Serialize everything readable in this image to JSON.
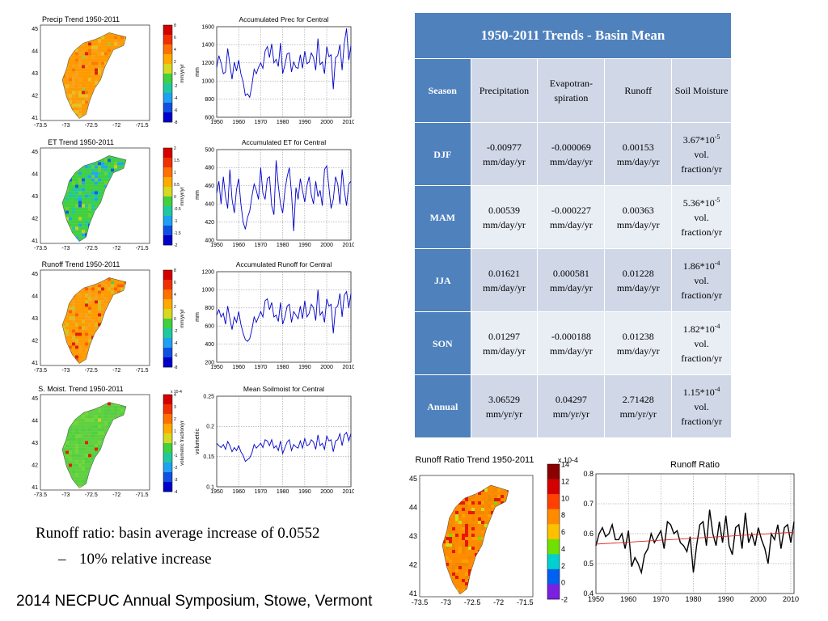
{
  "map_panels": [
    {
      "title": "Precip Trend 1950-2011",
      "xticks": [
        "-73.5",
        "-73",
        "-72.5",
        "-72",
        "-71.5"
      ],
      "yticks": [
        "45",
        "44",
        "43",
        "42",
        "41"
      ],
      "colorbar": {
        "ticks": [
          "8",
          "6",
          "4",
          "2",
          "0",
          "-2",
          "-4",
          "-6",
          "-8"
        ],
        "unit": "mm/yr/yr",
        "colors": [
          "#d40000",
          "#f03000",
          "#ff7000",
          "#ffaa00",
          "#d8d820",
          "#40d040",
          "#20c8a0",
          "#20a0f0",
          "#1050e0",
          "#0000c8"
        ]
      },
      "field_colors": [
        "#ff9a00",
        "#f7a21c",
        "#e8c020",
        "#ff7800",
        "#e02000",
        "#a8c830"
      ]
    },
    {
      "title": "ET Trend 1950-2011",
      "xticks": [
        "-73.5",
        "-73",
        "-72.5",
        "-72",
        "-71.5"
      ],
      "yticks": [
        "45",
        "44",
        "43",
        "42",
        "41"
      ],
      "colorbar": {
        "ticks": [
          "2",
          "1.5",
          "1",
          "0.5",
          "0",
          "-0.5",
          "-1",
          "-1.5",
          "-2"
        ],
        "unit": "mm/yr/yr",
        "colors": [
          "#d40000",
          "#f03000",
          "#ff7000",
          "#ffaa00",
          "#d8d820",
          "#40d040",
          "#20c8a0",
          "#20a0f0",
          "#1050e0",
          "#0000c8"
        ]
      },
      "field_colors": [
        "#40d040",
        "#20c8a0",
        "#20a8f0",
        "#70d030",
        "#1060e0",
        "#c8d020"
      ]
    },
    {
      "title": "Runoff Trend 1950-2011",
      "xticks": [
        "-73.5",
        "-73",
        "-72.5",
        "-72",
        "-71.5"
      ],
      "yticks": [
        "45",
        "44",
        "43",
        "42",
        "41"
      ],
      "colorbar": {
        "ticks": [
          "8",
          "6",
          "4",
          "2",
          "0",
          "-2",
          "-4",
          "-6",
          "-8"
        ],
        "unit": "mm/yr/yr",
        "colors": [
          "#d40000",
          "#f03000",
          "#ff7000",
          "#ffaa00",
          "#d8d820",
          "#40d040",
          "#20c8a0",
          "#20a0f0",
          "#1050e0",
          "#0000c8"
        ]
      },
      "field_colors": [
        "#ff9a00",
        "#f7a21c",
        "#d8c020",
        "#ff6000",
        "#e02000",
        "#60c840"
      ]
    },
    {
      "title": "S. Moist. Trend 1950-2011",
      "xticks": [
        "-73.5",
        "-73",
        "-72.5",
        "-72",
        "-71.5"
      ],
      "yticks": [
        "45",
        "44",
        "43",
        "42",
        "41"
      ],
      "colorbar": {
        "ticks": [
          "4",
          "3",
          "2",
          "1",
          "0",
          "-1",
          "-2",
          "-3",
          "-4"
        ],
        "unit": "volumetric fraction/yr",
        "exponent": "x 10-4",
        "colors": [
          "#d40000",
          "#f03000",
          "#ff7000",
          "#ffaa00",
          "#d8d820",
          "#40d040",
          "#20c8a0",
          "#20a0f0",
          "#1050e0",
          "#0000c8"
        ]
      },
      "field_colors": [
        "#60d040",
        "#50d040",
        "#70d838",
        "#60c848",
        "#e02000",
        "#d8d020"
      ]
    }
  ],
  "ratio_map": {
    "title": "Runoff Ratio Trend 1950-2011",
    "xticks": [
      "-73.5",
      "-73",
      "-72.5",
      "-72",
      "-71.5"
    ],
    "yticks": [
      "45",
      "44",
      "43",
      "42",
      "41"
    ],
    "colorbar": {
      "ticks": [
        "14",
        "12",
        "10",
        "8",
        "6",
        "4",
        "2",
        "0",
        "-2"
      ],
      "exponent": "x 10-4",
      "colors": [
        "#8b0000",
        "#d40000",
        "#ff4000",
        "#ff8c00",
        "#ffc000",
        "#70e000",
        "#00d0d0",
        "#0060f0",
        "#7a20e0"
      ]
    },
    "field_colors": [
      "#ff8c00",
      "#f08800",
      "#e81800",
      "#ffa000",
      "#c8e020",
      "#70e000"
    ]
  },
  "chart_data": [
    {
      "type": "line",
      "title": "Accumulated Prec for Central",
      "xlabel": "",
      "ylabel": "mm",
      "xlim": [
        1950,
        2011
      ],
      "ylim": [
        600,
        1600
      ],
      "yticks": [
        600,
        800,
        1000,
        1200,
        1400,
        1600
      ],
      "xticks": [
        1950,
        1960,
        1970,
        1980,
        1990,
        2000,
        2010
      ],
      "grid": true,
      "color": "#0000cc",
      "x": [
        1950,
        1951,
        1952,
        1953,
        1954,
        1955,
        1956,
        1957,
        1958,
        1959,
        1960,
        1961,
        1962,
        1963,
        1964,
        1965,
        1966,
        1967,
        1968,
        1969,
        1970,
        1971,
        1972,
        1973,
        1974,
        1975,
        1976,
        1977,
        1978,
        1979,
        1980,
        1981,
        1982,
        1983,
        1984,
        1985,
        1986,
        1987,
        1988,
        1989,
        1990,
        1991,
        1992,
        1993,
        1994,
        1995,
        1996,
        1997,
        1998,
        1999,
        2000,
        2001,
        2002,
        2003,
        2004,
        2005,
        2006,
        2007,
        2008,
        2009,
        2010,
        2011
      ],
      "values": [
        1150,
        1280,
        1200,
        1080,
        1100,
        1360,
        1180,
        1020,
        1210,
        1110,
        1230,
        1080,
        990,
        840,
        860,
        820,
        950,
        1130,
        1080,
        1150,
        1200,
        1140,
        1330,
        1380,
        1260,
        1410,
        1200,
        1240,
        1160,
        1420,
        1080,
        1180,
        1300,
        1310,
        1100,
        1210,
        1150,
        1140,
        1290,
        1140,
        1330,
        1190,
        1210,
        1310,
        1260,
        1120,
        1470,
        1180,
        1210,
        1080,
        1380,
        1270,
        1290,
        910,
        1260,
        1280,
        1400,
        1120,
        1420,
        1580,
        1230,
        1390
      ]
    },
    {
      "type": "line",
      "title": "Accumulated ET for Central",
      "xlabel": "",
      "ylabel": "mm",
      "xlim": [
        1950,
        2011
      ],
      "ylim": [
        400,
        500
      ],
      "yticks": [
        400,
        420,
        440,
        460,
        480,
        500
      ],
      "xticks": [
        1950,
        1960,
        1970,
        1980,
        1990,
        2000,
        2010
      ],
      "grid": true,
      "color": "#0000cc",
      "x": [
        1950,
        1951,
        1952,
        1953,
        1954,
        1955,
        1956,
        1957,
        1958,
        1959,
        1960,
        1961,
        1962,
        1963,
        1964,
        1965,
        1966,
        1967,
        1968,
        1969,
        1970,
        1971,
        1972,
        1973,
        1974,
        1975,
        1976,
        1977,
        1978,
        1979,
        1980,
        1981,
        1982,
        1983,
        1984,
        1985,
        1986,
        1987,
        1988,
        1989,
        1990,
        1991,
        1992,
        1993,
        1994,
        1995,
        1996,
        1997,
        1998,
        1999,
        2000,
        2001,
        2002,
        2003,
        2004,
        2005,
        2006,
        2007,
        2008,
        2009,
        2010,
        2011
      ],
      "values": [
        452,
        465,
        440,
        470,
        448,
        435,
        478,
        445,
        430,
        456,
        468,
        440,
        420,
        412,
        425,
        432,
        448,
        462,
        455,
        445,
        480,
        452,
        445,
        468,
        470,
        438,
        428,
        488,
        460,
        440,
        430,
        455,
        470,
        480,
        452,
        410,
        458,
        445,
        468,
        455,
        442,
        460,
        470,
        450,
        440,
        465,
        448,
        455,
        438,
        478,
        482,
        458,
        435,
        445,
        470,
        462,
        440,
        478,
        455,
        438,
        462,
        465
      ]
    },
    {
      "type": "line",
      "title": "Accumulated Runoff for Central",
      "xlabel": "",
      "ylabel": "mm",
      "xlim": [
        1950,
        2011
      ],
      "ylim": [
        200,
        1200
      ],
      "yticks": [
        200,
        400,
        600,
        800,
        1000,
        1200
      ],
      "xticks": [
        1950,
        1960,
        1970,
        1980,
        1990,
        2000,
        2010
      ],
      "grid": true,
      "color": "#0000cc",
      "x": [
        1950,
        1951,
        1952,
        1953,
        1954,
        1955,
        1956,
        1957,
        1958,
        1959,
        1960,
        1961,
        1962,
        1963,
        1964,
        1965,
        1966,
        1967,
        1968,
        1969,
        1970,
        1971,
        1972,
        1973,
        1974,
        1975,
        1976,
        1977,
        1978,
        1979,
        1980,
        1981,
        1982,
        1983,
        1984,
        1985,
        1986,
        1987,
        1988,
        1989,
        1990,
        1991,
        1992,
        1993,
        1994,
        1995,
        1996,
        1997,
        1998,
        1999,
        2000,
        2001,
        2002,
        2003,
        2004,
        2005,
        2006,
        2007,
        2008,
        2009,
        2010,
        2011
      ],
      "values": [
        720,
        780,
        700,
        740,
        620,
        820,
        680,
        560,
        700,
        640,
        760,
        620,
        520,
        450,
        430,
        460,
        560,
        700,
        640,
        700,
        760,
        700,
        880,
        900,
        780,
        860,
        700,
        720,
        650,
        860,
        620,
        700,
        820,
        840,
        640,
        760,
        720,
        680,
        820,
        680,
        880,
        700,
        740,
        840,
        800,
        660,
        1000,
        720,
        760,
        640,
        900,
        820,
        840,
        520,
        800,
        820,
        960,
        700,
        940,
        980,
        800,
        960
      ]
    },
    {
      "type": "line",
      "title": "Mean Soilmoist for Central",
      "xlabel": "",
      "ylabel": "volumetric",
      "xlim": [
        1950,
        2011
      ],
      "ylim": [
        0.1,
        0.25
      ],
      "yticks": [
        0.1,
        0.15,
        0.2,
        0.25
      ],
      "xticks": [
        1950,
        1960,
        1970,
        1980,
        1990,
        2000,
        2010
      ],
      "grid": true,
      "color": "#0000cc",
      "x": [
        1950,
        1951,
        1952,
        1953,
        1954,
        1955,
        1956,
        1957,
        1958,
        1959,
        1960,
        1961,
        1962,
        1963,
        1964,
        1965,
        1966,
        1967,
        1968,
        1969,
        1970,
        1971,
        1972,
        1973,
        1974,
        1975,
        1976,
        1977,
        1978,
        1979,
        1980,
        1981,
        1982,
        1983,
        1984,
        1985,
        1986,
        1987,
        1988,
        1989,
        1990,
        1991,
        1992,
        1993,
        1994,
        1995,
        1996,
        1997,
        1998,
        1999,
        2000,
        2001,
        2002,
        2003,
        2004,
        2005,
        2006,
        2007,
        2008,
        2009,
        2010,
        2011
      ],
      "values": [
        0.172,
        0.168,
        0.165,
        0.17,
        0.162,
        0.175,
        0.168,
        0.158,
        0.165,
        0.16,
        0.168,
        0.158,
        0.152,
        0.142,
        0.145,
        0.148,
        0.156,
        0.17,
        0.164,
        0.168,
        0.172,
        0.165,
        0.178,
        0.176,
        0.168,
        0.178,
        0.164,
        0.168,
        0.16,
        0.176,
        0.155,
        0.165,
        0.174,
        0.178,
        0.16,
        0.17,
        0.166,
        0.164,
        0.176,
        0.164,
        0.18,
        0.168,
        0.17,
        0.178,
        0.174,
        0.162,
        0.186,
        0.168,
        0.172,
        0.162,
        0.184,
        0.176,
        0.178,
        0.158,
        0.176,
        0.178,
        0.188,
        0.168,
        0.186,
        0.19,
        0.176,
        0.188
      ]
    },
    {
      "type": "line",
      "title": "Runoff Ratio",
      "xlabel": "",
      "ylabel": "",
      "xlim": [
        1950,
        2011
      ],
      "ylim": [
        0.4,
        0.8
      ],
      "yticks": [
        0.4,
        0.5,
        0.6,
        0.7,
        0.8
      ],
      "xticks": [
        1950,
        1960,
        1970,
        1980,
        1990,
        2000,
        2010
      ],
      "grid": true,
      "color": "#000000",
      "trend": {
        "start": 0.565,
        "end": 0.605,
        "color": "#e02020"
      },
      "x": [
        1950,
        1951,
        1952,
        1953,
        1954,
        1955,
        1956,
        1957,
        1958,
        1959,
        1960,
        1961,
        1962,
        1963,
        1964,
        1965,
        1966,
        1967,
        1968,
        1969,
        1970,
        1971,
        1972,
        1973,
        1974,
        1975,
        1976,
        1977,
        1978,
        1979,
        1980,
        1981,
        1982,
        1983,
        1984,
        1985,
        1986,
        1987,
        1988,
        1989,
        1990,
        1991,
        1992,
        1993,
        1994,
        1995,
        1996,
        1997,
        1998,
        1999,
        2000,
        2001,
        2002,
        2003,
        2004,
        2005,
        2006,
        2007,
        2008,
        2009,
        2010,
        2011
      ],
      "values": [
        0.56,
        0.6,
        0.62,
        0.59,
        0.6,
        0.63,
        0.58,
        0.58,
        0.6,
        0.55,
        0.61,
        0.49,
        0.52,
        0.5,
        0.47,
        0.53,
        0.55,
        0.6,
        0.57,
        0.59,
        0.61,
        0.55,
        0.64,
        0.63,
        0.6,
        0.61,
        0.57,
        0.56,
        0.54,
        0.59,
        0.47,
        0.56,
        0.63,
        0.64,
        0.56,
        0.68,
        0.6,
        0.56,
        0.64,
        0.57,
        0.66,
        0.56,
        0.53,
        0.62,
        0.63,
        0.55,
        0.67,
        0.57,
        0.6,
        0.56,
        0.62,
        0.58,
        0.55,
        0.5,
        0.6,
        0.58,
        0.63,
        0.55,
        0.62,
        0.63,
        0.57,
        0.64
      ]
    }
  ],
  "table": {
    "title": "1950-2011 Trends - Basin Mean",
    "headers": {
      "season": "Season",
      "precip": "Precipitation",
      "et": "Evapotran-spiration",
      "runoff": "Runoff",
      "soil": "Soil Moisture"
    },
    "rows": [
      {
        "season": "DJF",
        "precip": "-0.00977 mm/day/yr",
        "et": "-0.000069 mm/day/yr",
        "runoff": "0.00153 mm/day/yr",
        "soil_base": "3.67*10",
        "soil_exp": "-5",
        "soil_unit": "vol. fraction/yr"
      },
      {
        "season": "MAM",
        "precip": "0.00539 mm/day/yr",
        "et": "-0.000227 mm/day/yr",
        "runoff": "0.00363 mm/day/yr",
        "soil_base": "5.36*10",
        "soil_exp": "-5",
        "soil_unit": "vol. fraction/yr"
      },
      {
        "season": "JJA",
        "precip": "0.01621 mm/day/yr",
        "et": "0.000581 mm/day/yr",
        "runoff": "0.01228 mm/day/yr",
        "soil_base": "1.86*10",
        "soil_exp": "-4",
        "soil_unit": "vol. fraction/yr"
      },
      {
        "season": "SON",
        "precip": "0.01297 mm/day/yr",
        "et": "-0.000188 mm/day/yr",
        "runoff": "0.01238 mm/day/yr",
        "soil_base": "1.82*10",
        "soil_exp": "-4",
        "soil_unit": "vol. fraction/yr"
      },
      {
        "season": "Annual",
        "precip": "3.06529 mm/yr/yr",
        "et": "0.04297 mm/yr/yr",
        "runoff": "2.71428 mm/yr/yr",
        "soil_base": "1.15*10",
        "soil_exp": "-4",
        "soil_unit": "vol. fraction/yr"
      }
    ]
  },
  "bullets": {
    "main": "Runoff ratio: basin average increase of 0.0552",
    "dash": "–",
    "sub": "10% relative increase"
  },
  "footer": "2014 NECPUC Annual Symposium, Stowe, Vermont"
}
